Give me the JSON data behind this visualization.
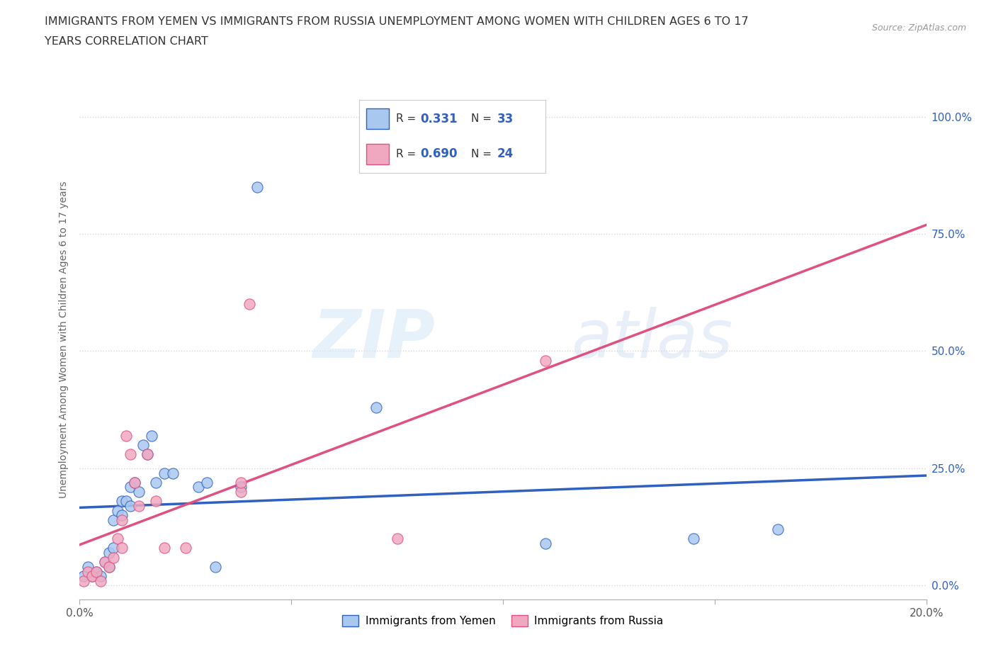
{
  "title_line1": "IMMIGRANTS FROM YEMEN VS IMMIGRANTS FROM RUSSIA UNEMPLOYMENT AMONG WOMEN WITH CHILDREN AGES 6 TO 17",
  "title_line2": "YEARS CORRELATION CHART",
  "source": "Source: ZipAtlas.com",
  "ylabel": "Unemployment Among Women with Children Ages 6 to 17 years",
  "xlim": [
    0.0,
    0.2
  ],
  "ylim": [
    -0.03,
    1.08
  ],
  "yticks": [
    0.0,
    0.25,
    0.5,
    0.75,
    1.0
  ],
  "ytick_labels_right": [
    "0.0%",
    "25.0%",
    "50.0%",
    "75.0%",
    "100.0%"
  ],
  "xticks": [
    0.0,
    0.05,
    0.1,
    0.15,
    0.2
  ],
  "xtick_labels": [
    "0.0%",
    "",
    "",
    "",
    "20.0%"
  ],
  "watermark_zip": "ZIP",
  "watermark_atlas": "atlas",
  "legend_r_yemen": "0.331",
  "legend_n_yemen": "33",
  "legend_r_russia": "0.690",
  "legend_n_russia": "24",
  "yemen_color": "#a8c8f0",
  "russia_color": "#f0a8c0",
  "trend_yemen_color": "#3060c0",
  "trend_russia_color": "#e05080",
  "text_blue": "#3060c0",
  "yemen_scatter": [
    [
      0.001,
      0.02
    ],
    [
      0.002,
      0.04
    ],
    [
      0.003,
      0.02
    ],
    [
      0.004,
      0.03
    ],
    [
      0.005,
      0.02
    ],
    [
      0.006,
      0.05
    ],
    [
      0.007,
      0.04
    ],
    [
      0.007,
      0.07
    ],
    [
      0.008,
      0.08
    ],
    [
      0.008,
      0.14
    ],
    [
      0.009,
      0.16
    ],
    [
      0.01,
      0.18
    ],
    [
      0.01,
      0.15
    ],
    [
      0.011,
      0.18
    ],
    [
      0.012,
      0.17
    ],
    [
      0.012,
      0.21
    ],
    [
      0.013,
      0.22
    ],
    [
      0.014,
      0.2
    ],
    [
      0.015,
      0.3
    ],
    [
      0.016,
      0.28
    ],
    [
      0.017,
      0.32
    ],
    [
      0.018,
      0.22
    ],
    [
      0.02,
      0.24
    ],
    [
      0.022,
      0.24
    ],
    [
      0.028,
      0.21
    ],
    [
      0.03,
      0.22
    ],
    [
      0.032,
      0.04
    ],
    [
      0.038,
      0.21
    ],
    [
      0.042,
      0.85
    ],
    [
      0.07,
      0.38
    ],
    [
      0.11,
      0.09
    ],
    [
      0.145,
      0.1
    ],
    [
      0.165,
      0.12
    ]
  ],
  "russia_scatter": [
    [
      0.001,
      0.01
    ],
    [
      0.002,
      0.03
    ],
    [
      0.003,
      0.02
    ],
    [
      0.004,
      0.03
    ],
    [
      0.005,
      0.01
    ],
    [
      0.006,
      0.05
    ],
    [
      0.007,
      0.04
    ],
    [
      0.008,
      0.06
    ],
    [
      0.009,
      0.1
    ],
    [
      0.01,
      0.08
    ],
    [
      0.01,
      0.14
    ],
    [
      0.011,
      0.32
    ],
    [
      0.012,
      0.28
    ],
    [
      0.013,
      0.22
    ],
    [
      0.014,
      0.17
    ],
    [
      0.016,
      0.28
    ],
    [
      0.018,
      0.18
    ],
    [
      0.02,
      0.08
    ],
    [
      0.025,
      0.08
    ],
    [
      0.038,
      0.2
    ],
    [
      0.038,
      0.22
    ],
    [
      0.04,
      0.6
    ],
    [
      0.075,
      0.1
    ],
    [
      0.11,
      0.48
    ]
  ]
}
